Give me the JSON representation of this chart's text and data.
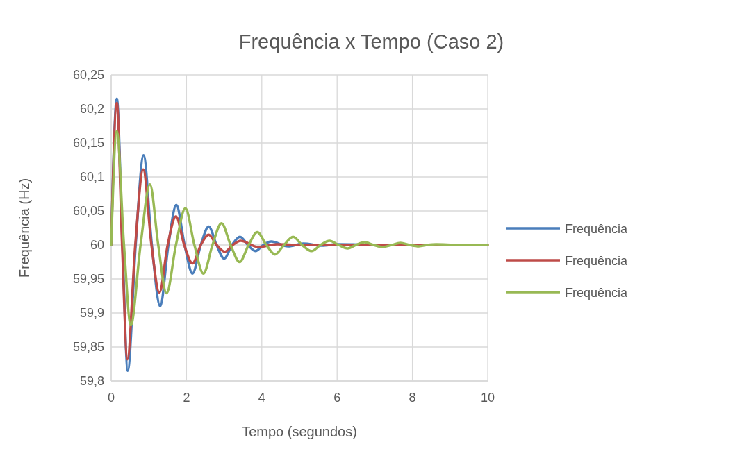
{
  "chart_data": {
    "type": "line",
    "title": "Frequência x Tempo (Caso 2)",
    "xlabel": "Tempo (segundos)",
    "ylabel": "Frequência (Hz)",
    "xlim": [
      0,
      10
    ],
    "xticks": [
      0,
      2,
      4,
      6,
      8,
      10
    ],
    "ylim": [
      59.8,
      60.25
    ],
    "yticks": [
      {
        "value": 59.8,
        "label": "59,8"
      },
      {
        "value": 59.85,
        "label": "59,85"
      },
      {
        "value": 59.9,
        "label": "59,9"
      },
      {
        "value": 59.95,
        "label": "59,95"
      },
      {
        "value": 60,
        "label": "60"
      },
      {
        "value": 60.05,
        "label": "60,05"
      },
      {
        "value": 60.1,
        "label": "60,1"
      },
      {
        "value": 60.15,
        "label": "60,15"
      },
      {
        "value": 60.2,
        "label": "60,2"
      },
      {
        "value": 60.25,
        "label": "60,25"
      }
    ],
    "grid": true,
    "legend": "right",
    "marker": "none",
    "line_style": "solid",
    "series": [
      {
        "name": "Frequência",
        "color": "#4a7ebb",
        "x": [
          0,
          0.15,
          0.3,
          0.44,
          0.65,
          0.86,
          1.08,
          1.3,
          1.52,
          1.73,
          1.95,
          2.16,
          2.38,
          2.59,
          2.8,
          3.0,
          3.21,
          3.42,
          3.63,
          3.83,
          4.04,
          4.25,
          4.7,
          5.1,
          5.6,
          6.0,
          7
        ],
        "values": [
          60,
          60.215,
          60,
          59.815,
          60,
          60.132,
          60,
          59.91,
          60,
          60.059,
          60,
          59.958,
          60,
          60.027,
          60,
          59.98,
          60,
          60.012,
          60,
          59.991,
          60,
          60.005,
          59.998,
          60.002,
          59.999,
          60.001,
          60
        ]
      },
      {
        "name": "Frequência",
        "color": "#be4b48",
        "x": [
          0,
          0.15,
          0.29,
          0.43,
          0.64,
          0.85,
          1.07,
          1.28,
          1.5,
          1.72,
          1.94,
          2.16,
          2.38,
          2.59,
          2.8,
          3.02,
          3.23,
          3.44,
          3.9,
          4.4,
          5,
          6,
          7,
          8,
          9,
          10
        ],
        "values": [
          60,
          60.209,
          60,
          59.832,
          60,
          60.111,
          60,
          59.93,
          60,
          60.042,
          60,
          59.973,
          60,
          60.015,
          60,
          59.99,
          60,
          60.006,
          59.997,
          60.001,
          60,
          60,
          60,
          60,
          60,
          60
        ]
      },
      {
        "name": "Frequência",
        "color": "#98b954",
        "x": [
          0,
          0.15,
          0.34,
          0.52,
          0.78,
          1.03,
          1.25,
          1.47,
          1.72,
          1.97,
          2.21,
          2.45,
          2.69,
          2.93,
          3.17,
          3.41,
          3.65,
          3.88,
          4.12,
          4.35,
          4.59,
          4.83,
          5.07,
          5.32,
          5.56,
          5.8,
          6.04,
          6.28,
          6.5,
          6.73,
          6.97,
          7.22,
          7.45,
          7.68,
          7.92,
          8.17,
          8.4,
          8.63,
          9.2,
          10
        ],
        "values": [
          60,
          60.167,
          60,
          59.882,
          60,
          60.089,
          60,
          59.929,
          60,
          60.054,
          60,
          59.958,
          60,
          60.032,
          60,
          59.975,
          60,
          60.019,
          60,
          59.986,
          60,
          60.012,
          60,
          59.991,
          60,
          60.006,
          60,
          59.995,
          60,
          60.004,
          60,
          59.997,
          60,
          60.003,
          60,
          59.998,
          60,
          60.001,
          60,
          60
        ]
      }
    ]
  }
}
